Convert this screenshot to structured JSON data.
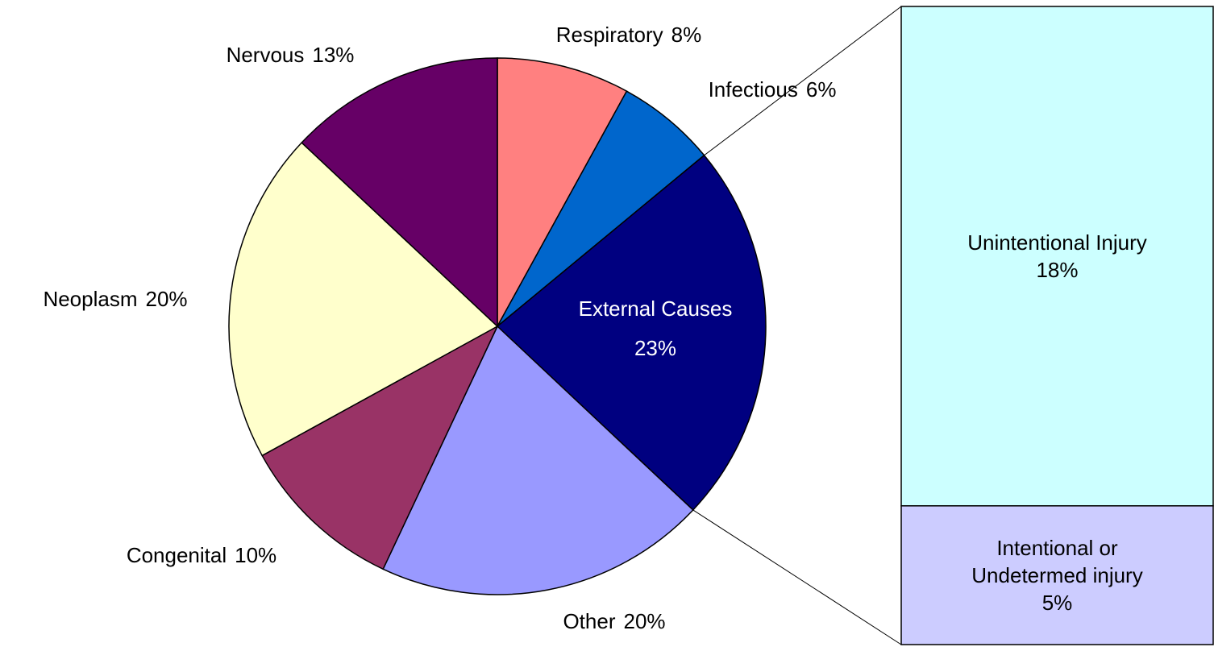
{
  "chart_data": {
    "type": "pie",
    "categories": [
      "Respiratory",
      "Infectious",
      "External Causes",
      "Other",
      "Congenital",
      "Neoplasm",
      "Nervous"
    ],
    "values": [
      8,
      6,
      23,
      20,
      10,
      20,
      13
    ],
    "value_labels": [
      "8%",
      "6%",
      "23%",
      "20%",
      "10%",
      "20%",
      "13%"
    ],
    "colors": [
      "#ff8080",
      "#0066cc",
      "#000080",
      "#9999ff",
      "#993366",
      "#ffffcc",
      "#660066"
    ],
    "breakout": {
      "type": "stacked-bar",
      "categories": [
        "Unintentional Injury",
        "Intentional or Undetermed injury"
      ],
      "values": [
        18,
        5
      ],
      "value_labels": [
        "18%",
        "5%"
      ],
      "colors": [
        "#ccffff",
        "#ccccff"
      ]
    }
  }
}
